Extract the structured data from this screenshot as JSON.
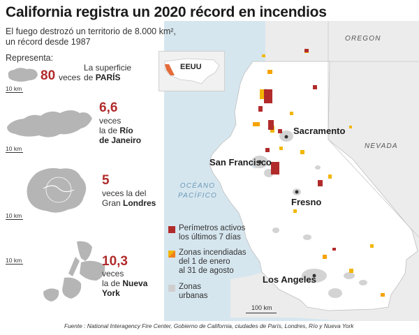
{
  "title": "California registra un 2020 récord en incendios",
  "subtitle_line1": "El fuego destrozó un territorio de 8.000 km²,",
  "subtitle_line2": "un récord desde 1987",
  "represents_label": "Representa:",
  "comparisons": [
    {
      "number": "80",
      "suffix": "veces",
      "text1": "La superficie",
      "text2": "de ",
      "place": "PARÍS",
      "scale": "10 km"
    },
    {
      "number": "6,6",
      "text1": "veces",
      "text2": "la de ",
      "place_a": "Río",
      "place_b": "de Janeiro",
      "scale": "10 km"
    },
    {
      "number": "5",
      "text1": "veces la del",
      "text2": "Gran ",
      "place": "Londres",
      "scale": "10 km"
    },
    {
      "number": "10,3",
      "text1": "veces",
      "text2": "la de ",
      "place_a": "Nueva",
      "place_b": "York",
      "scale": "10 km"
    }
  ],
  "inset": {
    "label": "EEUU"
  },
  "map": {
    "states": [
      "OREGON",
      "NEVADA"
    ],
    "ocean_line1": "OCÉANO",
    "ocean_line2": "PACÍFICO",
    "cities": [
      "Sacramento",
      "San Francisco",
      "Fresno",
      "Los Angeles"
    ],
    "scale_label": "100 km"
  },
  "legend": [
    {
      "line1": "Perímetros activos",
      "line2": "los últimos 7 días",
      "icon": "red-square",
      "color": "#b12b2b"
    },
    {
      "line1": "Zonas incendiadas",
      "line2": "del 1 de enero",
      "line3": "al 31 de agosto",
      "icon": "yellow-orange-square",
      "color": "#f2b600"
    },
    {
      "line1": "Zonas",
      "line2": "urbanas",
      "icon": "gray-square",
      "color": "#cfcfcf"
    }
  ],
  "colors": {
    "active_fire": "#b12b2b",
    "burned_zone": "#f2b600",
    "urban": "#cfcfcf",
    "ocean": "#d6e6ef",
    "land": "#ffffff"
  },
  "source": "Fuente : National Interagency Fire Center, Gobierno de California, ciudades de París, Londres, Río y Nueva York"
}
